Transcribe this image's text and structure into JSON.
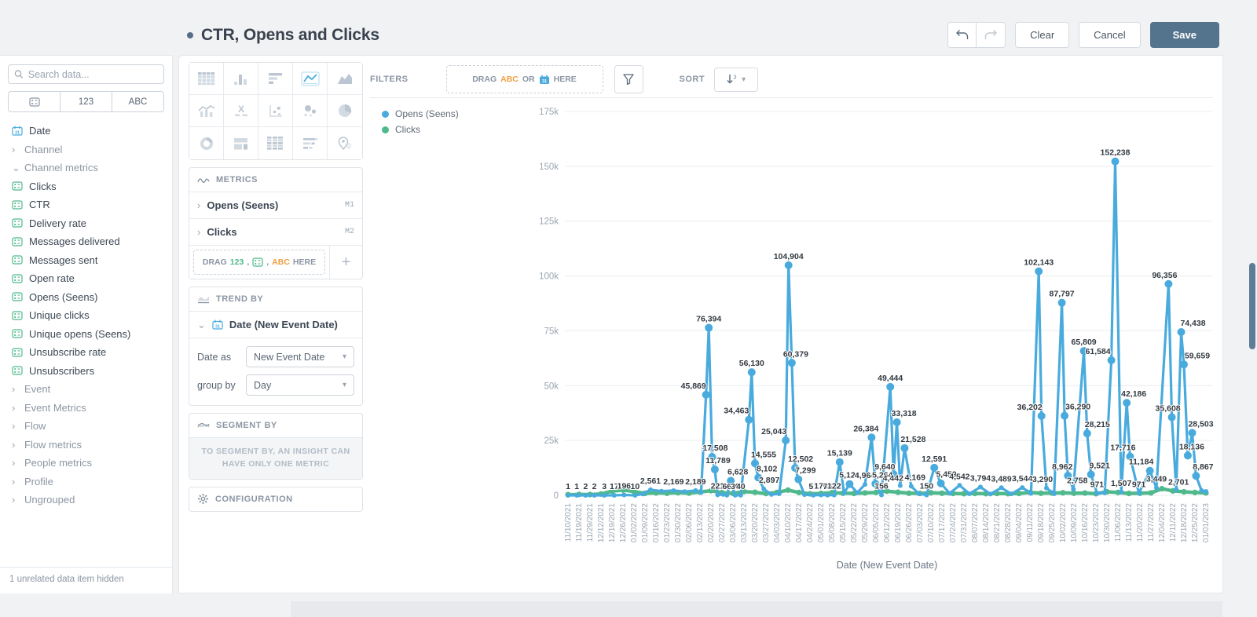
{
  "header": {
    "title": "CTR, Opens and Clicks",
    "clear_label": "Clear",
    "cancel_label": "Cancel",
    "save_label": "Save"
  },
  "sidebar": {
    "search_placeholder": "Search data...",
    "type_tabs": [
      {
        "icon": "metric-icon",
        "label": ""
      },
      {
        "icon": "",
        "label": "123"
      },
      {
        "icon": "",
        "label": "ABC"
      }
    ],
    "items": [
      {
        "type": "date",
        "label": "Date"
      },
      {
        "type": "group",
        "state": "collapsed",
        "label": "Channel"
      },
      {
        "type": "group",
        "state": "expanded",
        "label": "Channel metrics"
      },
      {
        "type": "metric",
        "label": "Clicks"
      },
      {
        "type": "metric",
        "label": "CTR"
      },
      {
        "type": "metric",
        "label": "Delivery rate"
      },
      {
        "type": "metric",
        "label": "Messages delivered"
      },
      {
        "type": "metric",
        "label": "Messages sent"
      },
      {
        "type": "metric",
        "label": "Open rate"
      },
      {
        "type": "metric",
        "label": "Opens (Seens)"
      },
      {
        "type": "metric",
        "label": "Unique clicks"
      },
      {
        "type": "metric",
        "label": "Unique opens (Seens)"
      },
      {
        "type": "metric",
        "label": "Unsubscribe rate"
      },
      {
        "type": "metric",
        "label": "Unsubscribers"
      },
      {
        "type": "group",
        "state": "collapsed",
        "label": "Event"
      },
      {
        "type": "group",
        "state": "collapsed",
        "label": "Event Metrics"
      },
      {
        "type": "group",
        "state": "collapsed",
        "label": "Flow"
      },
      {
        "type": "group",
        "state": "collapsed",
        "label": "Flow metrics"
      },
      {
        "type": "group",
        "state": "collapsed",
        "label": "People metrics"
      },
      {
        "type": "group",
        "state": "collapsed",
        "label": "Profile"
      },
      {
        "type": "group",
        "state": "collapsed",
        "label": "Ungrouped"
      }
    ],
    "footer": "1 unrelated data item hidden"
  },
  "builder": {
    "chart_types": [
      "table",
      "column-chart",
      "bar-chart",
      "line-chart",
      "area-chart",
      "combo-chart",
      "funnel",
      "scatter-plot",
      "bubble-chart",
      "pie-chart",
      "donut-chart",
      "treemap",
      "pivot-table",
      "cohort",
      "map"
    ],
    "selected_chart_type": "line-chart",
    "metrics": {
      "title": "METRICS",
      "rows": [
        {
          "label": "Opens (Seens)",
          "badge": "M1"
        },
        {
          "label": "Clicks",
          "badge": "M2"
        }
      ],
      "dropzone": {
        "drag": "DRAG",
        "num": "123",
        "sep1": ",",
        "sep2": ",",
        "abc": "ABC",
        "here": "HERE"
      }
    },
    "trend_by": {
      "title": "TREND BY",
      "field": "Date (New Event Date)",
      "date_as_label": "Date as",
      "date_as_value": "New Event Date",
      "group_by_label": "group by",
      "group_by_value": "Day"
    },
    "segment_by": {
      "title": "SEGMENT BY",
      "note": "TO SEGMENT BY, AN INSIGHT CAN HAVE ONLY ONE METRIC"
    },
    "configuration": {
      "title": "CONFIGURATION"
    }
  },
  "filters_bar": {
    "filters_label": "FILTERS",
    "dropzone": {
      "drag": "DRAG",
      "abc": "ABC",
      "or": "OR",
      "here": "HERE"
    },
    "sort_label": "SORT"
  },
  "colors": {
    "opens": "#49abdd",
    "clicks": "#4fb98c",
    "accent_slate": "#54748e",
    "label_text": "#333a41",
    "axis_text": "#9aa5b1",
    "grid": "#e9ecef"
  },
  "chart_data": {
    "type": "line",
    "title": "",
    "xlabel": "Date (New Event Date)",
    "ylabel": "",
    "ylim": [
      0,
      175000
    ],
    "grid": true,
    "legend_position": "top-left",
    "y_ticks": [
      {
        "v": 0,
        "label": "0"
      },
      {
        "v": 25000,
        "label": "25k"
      },
      {
        "v": 50000,
        "label": "50k"
      },
      {
        "v": 75000,
        "label": "75k"
      },
      {
        "v": 100000,
        "label": "100k"
      },
      {
        "v": 125000,
        "label": "125k"
      },
      {
        "v": 150000,
        "label": "150k"
      },
      {
        "v": 175000,
        "label": "175k"
      }
    ],
    "x_ticks": [
      "11/10/2021",
      "11/19/2021",
      "11/29/2021",
      "12/12/2021",
      "12/19/2021",
      "12/26/2021",
      "01/02/2022",
      "01/09/2022",
      "01/16/2022",
      "01/23/2022",
      "01/30/2022",
      "02/06/2022",
      "02/13/2022",
      "02/20/2022",
      "02/27/2022",
      "03/06/2022",
      "03/13/2022",
      "03/20/2022",
      "03/27/2022",
      "04/03/2022",
      "04/10/2022",
      "04/17/2022",
      "04/24/2022",
      "05/01/2022",
      "05/08/2022",
      "05/15/2022",
      "05/22/2022",
      "05/29/2022",
      "06/05/2022",
      "06/12/2022",
      "06/19/2022",
      "06/26/2022",
      "07/03/2022",
      "07/10/2022",
      "07/17/2022",
      "07/24/2022",
      "07/31/2022",
      "08/07/2022",
      "08/14/2022",
      "08/21/2022",
      "08/28/2022",
      "09/04/2022",
      "09/11/2022",
      "09/18/2022",
      "09/25/2022",
      "10/02/2022",
      "10/09/2022",
      "10/16/2022",
      "10/23/2022",
      "10/30/2022",
      "11/06/2022",
      "11/13/2022",
      "11/20/2022",
      "11/27/2022",
      "12/04/2022",
      "12/11/2022",
      "12/18/2022",
      "12/25/2022",
      "01/01/2023"
    ],
    "series": [
      {
        "name": "Opens (Seens)",
        "color": "#49abdd",
        "points": [
          [
            0,
            1,
            "1"
          ],
          [
            0.8,
            1,
            "1"
          ],
          [
            1.6,
            2,
            "2"
          ],
          [
            2.4,
            2,
            "2"
          ],
          [
            3.3,
            3,
            "3"
          ],
          [
            4.2,
            17,
            "17"
          ],
          [
            5.1,
            196,
            "196"
          ],
          [
            6.1,
            10,
            "10"
          ],
          [
            6.8,
            600
          ],
          [
            7.5,
            2561,
            "2,561"
          ],
          [
            8.5,
            1900
          ],
          [
            9.6,
            2169,
            "2,169"
          ],
          [
            10.6,
            1700
          ],
          [
            11.6,
            2189,
            "2,189"
          ],
          [
            12.1,
            1300
          ],
          [
            12.55,
            45869,
            "45,869",
            -16,
            0
          ],
          [
            12.8,
            76394,
            "76,394"
          ],
          [
            13.1,
            17508,
            "17,508",
            4,
            0
          ],
          [
            13.35,
            11789,
            "11,789",
            4,
            0
          ],
          [
            13.6,
            221,
            "221"
          ],
          [
            14.1,
            400
          ],
          [
            14.45,
            66,
            "66"
          ],
          [
            14.8,
            6628,
            "6,628",
            9,
            0
          ],
          [
            15.2,
            30,
            "30"
          ],
          [
            15.7,
            40,
            "40"
          ],
          [
            16.45,
            34463,
            "34,463",
            -16,
            0
          ],
          [
            16.7,
            56130,
            "56,130"
          ],
          [
            17.0,
            14555,
            "14,555",
            11,
            0
          ],
          [
            17.3,
            8102,
            "8,102",
            11,
            0
          ],
          [
            17.8,
            2897,
            "2,897",
            7,
            0
          ],
          [
            18.5,
            400
          ],
          [
            19.2,
            700
          ],
          [
            19.8,
            25043,
            "25,043",
            -15,
            0
          ],
          [
            20.05,
            104904,
            "104,904"
          ],
          [
            20.35,
            60379,
            "60,379",
            5,
            0
          ],
          [
            20.65,
            12502,
            "12,502",
            7,
            0
          ],
          [
            20.95,
            7299,
            "7,299",
            9,
            0
          ],
          [
            21.5,
            300
          ],
          [
            22.3,
            51,
            "51"
          ],
          [
            23.0,
            176,
            "176"
          ],
          [
            23.6,
            78,
            "78"
          ],
          [
            24.2,
            122,
            "122"
          ],
          [
            24.7,
            15139,
            "15,139"
          ],
          [
            25.1,
            1000
          ],
          [
            25.6,
            5124,
            "5,124"
          ],
          [
            26.3,
            1200
          ],
          [
            27.0,
            4964,
            "4,964"
          ],
          [
            27.6,
            26384,
            "26,384",
            -7,
            0
          ],
          [
            27.95,
            5264,
            "5,264",
            9,
            0
          ],
          [
            28.5,
            156,
            "156"
          ],
          [
            29.3,
            49444,
            "49,444"
          ],
          [
            29.6,
            9640,
            "9,640",
            -11,
            2
          ],
          [
            29.9,
            33318,
            "33,318",
            9,
            0
          ],
          [
            30.2,
            4442,
            "4,442",
            -9,
            2
          ],
          [
            30.6,
            21528,
            "21,528",
            11,
            0
          ],
          [
            31.2,
            4169,
            "4,169",
            5,
            0
          ],
          [
            31.9,
            700
          ],
          [
            32.6,
            150,
            "150"
          ],
          [
            33.3,
            12591,
            "12,591"
          ],
          [
            33.9,
            5459,
            "5,459",
            7,
            0
          ],
          [
            34.7,
            900
          ],
          [
            35.6,
            4542,
            "4,542"
          ],
          [
            36.5,
            700
          ],
          [
            37.5,
            3794,
            "3,794"
          ],
          [
            38.4,
            600
          ],
          [
            39.4,
            3489,
            "3,489"
          ],
          [
            40.3,
            650
          ],
          [
            41.3,
            3544,
            "3,544"
          ],
          [
            42.1,
            900
          ],
          [
            42.8,
            102143,
            "102,143"
          ],
          [
            43.05,
            36202,
            "36,202",
            -15,
            0
          ],
          [
            43.5,
            3290,
            "3,290",
            -5,
            0
          ],
          [
            44.2,
            700
          ],
          [
            44.9,
            87797,
            "87,797"
          ],
          [
            45.15,
            36290,
            "36,290",
            17,
            0
          ],
          [
            45.45,
            8962,
            "8,962",
            -7,
            0
          ],
          [
            45.95,
            2758,
            "2,758",
            5,
            0
          ],
          [
            46.9,
            65809,
            "65,809"
          ],
          [
            47.2,
            28215,
            "28,215",
            13,
            0
          ],
          [
            47.55,
            9521,
            "9,521",
            11,
            0
          ],
          [
            48.1,
            971,
            "971"
          ],
          [
            48.8,
            1100
          ],
          [
            49.4,
            61584,
            "61,584",
            -17,
            0
          ],
          [
            49.75,
            152238,
            "152,238"
          ],
          [
            50.3,
            1507,
            "1,507"
          ],
          [
            50.8,
            42186,
            "42,186",
            9,
            0
          ],
          [
            51.1,
            17716,
            "17,716",
            -9,
            0
          ],
          [
            51.9,
            971,
            "971"
          ],
          [
            52.9,
            11184,
            "11,184",
            -11,
            0
          ],
          [
            53.5,
            3449,
            "3,449"
          ],
          [
            54.6,
            96356,
            "96,356",
            -5,
            0
          ],
          [
            54.9,
            35608,
            "35,608",
            -5,
            0
          ],
          [
            55.3,
            2701,
            "2,701",
            3,
            2
          ],
          [
            55.75,
            74438,
            "74,438",
            15,
            0
          ],
          [
            56.0,
            59659,
            "59,659",
            17,
            0
          ],
          [
            56.35,
            18136,
            "18,136",
            5,
            0
          ],
          [
            56.75,
            28503,
            "28,503",
            11,
            0
          ],
          [
            57.1,
            8867,
            "8,867",
            9,
            0
          ],
          [
            57.6,
            2200
          ],
          [
            58,
            1800
          ]
        ]
      },
      {
        "name": "Clicks",
        "color": "#4fb98c",
        "points": [
          [
            0,
            300
          ],
          [
            1,
            400
          ],
          [
            2,
            350
          ],
          [
            3,
            600
          ],
          [
            4,
            1900
          ],
          [
            5,
            2400
          ],
          [
            6,
            1700
          ],
          [
            7,
            900
          ],
          [
            8,
            1100
          ],
          [
            9,
            950
          ],
          [
            10,
            1200
          ],
          [
            11,
            1000
          ],
          [
            12,
            1500
          ],
          [
            13,
            2100
          ],
          [
            14,
            1200
          ],
          [
            15,
            900
          ],
          [
            16,
            1700
          ],
          [
            17,
            1400
          ],
          [
            18,
            800
          ],
          [
            19,
            1300
          ],
          [
            20,
            2400
          ],
          [
            21,
            1300
          ],
          [
            22,
            700
          ],
          [
            23,
            850
          ],
          [
            24,
            1200
          ],
          [
            25,
            950
          ],
          [
            26,
            850
          ],
          [
            27,
            1100
          ],
          [
            28,
            1300
          ],
          [
            29,
            1900
          ],
          [
            30,
            1400
          ],
          [
            31,
            950
          ],
          [
            32,
            850
          ],
          [
            33,
            1150
          ],
          [
            34,
            950
          ],
          [
            35,
            850
          ],
          [
            36,
            750
          ],
          [
            37,
            850
          ],
          [
            38,
            750
          ],
          [
            39,
            850
          ],
          [
            40,
            750
          ],
          [
            41,
            850
          ],
          [
            42,
            1300
          ],
          [
            43,
            950
          ],
          [
            44,
            1050
          ],
          [
            45,
            1150
          ],
          [
            46,
            950
          ],
          [
            47,
            1050
          ],
          [
            48,
            750
          ],
          [
            49,
            1600
          ],
          [
            50,
            1300
          ],
          [
            51,
            850
          ],
          [
            52,
            950
          ],
          [
            53,
            1100
          ],
          [
            54,
            3000
          ],
          [
            55,
            2000
          ],
          [
            56,
            1600
          ],
          [
            57,
            1300
          ],
          [
            58,
            1100
          ]
        ]
      }
    ]
  }
}
